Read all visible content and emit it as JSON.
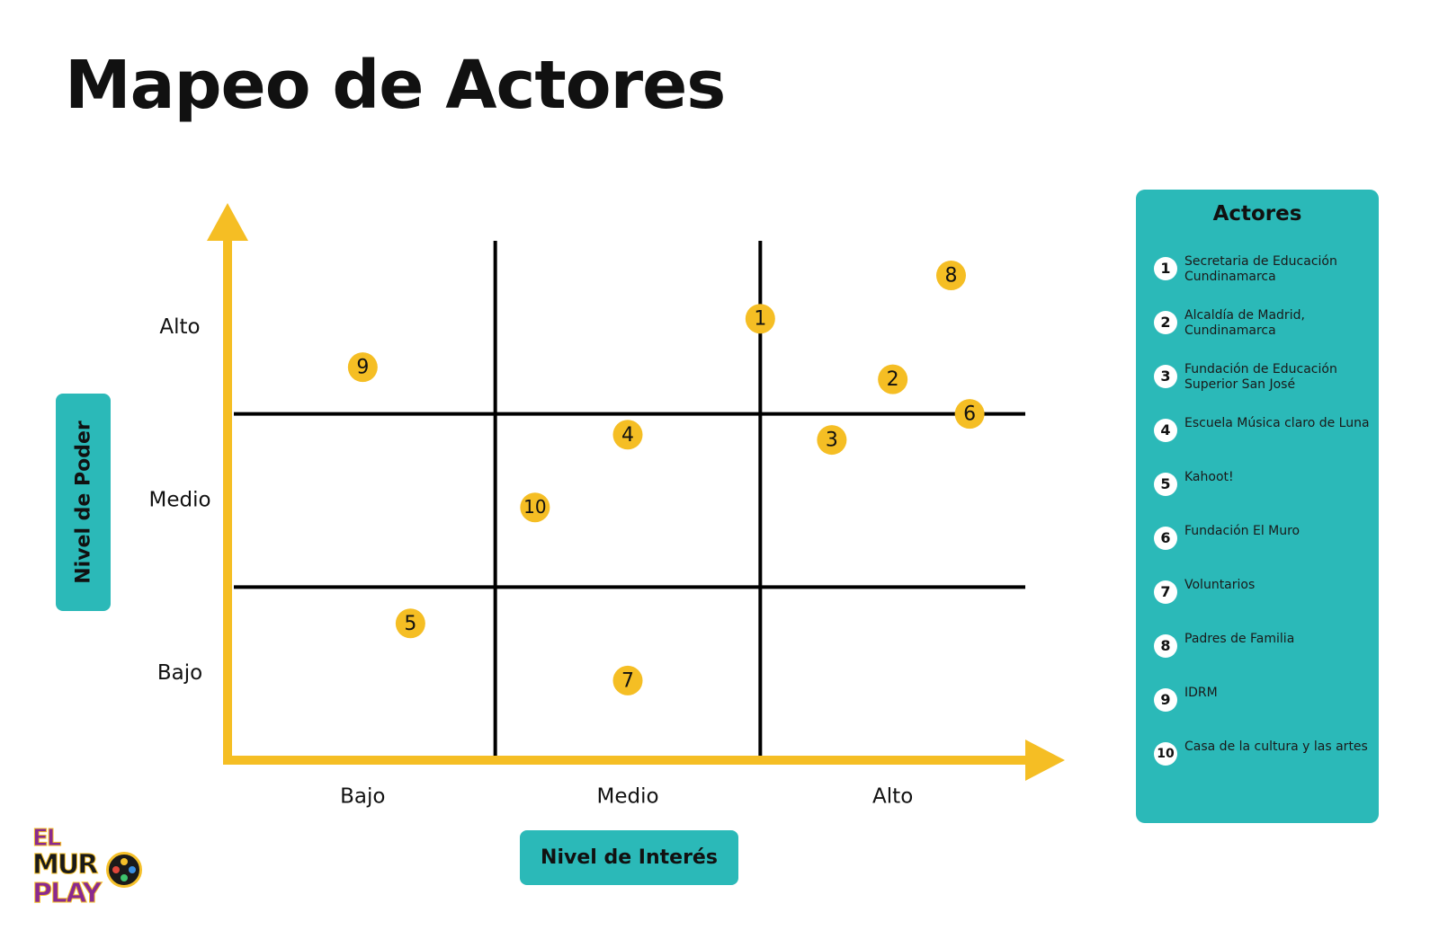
{
  "title": "Mapeo de Actores",
  "y_axis": {
    "label": "Nivel de Poder",
    "levels": [
      "Bajo",
      "Medio",
      "Alto"
    ]
  },
  "x_axis": {
    "label": "Nivel de Interés",
    "levels": [
      "Bajo",
      "Medio",
      "Alto"
    ]
  },
  "colors": {
    "accent": "#f5be24",
    "teal": "#2bb9b8",
    "grid": "#000000"
  },
  "legend": {
    "title": "Actores",
    "items": [
      {
        "num": "1",
        "name": "Secretaria de Educación Cundinamarca"
      },
      {
        "num": "2",
        "name": "Alcaldía de Madrid, Cundinamarca"
      },
      {
        "num": "3",
        "name": "Fundación de Educación Superior San José"
      },
      {
        "num": "4",
        "name": "Escuela Música claro de Luna"
      },
      {
        "num": "5",
        "name": "Kahoot!"
      },
      {
        "num": "6",
        "name": "Fundación El Muro"
      },
      {
        "num": "7",
        "name": "Voluntarios"
      },
      {
        "num": "8",
        "name": "Padres de Familia"
      },
      {
        "num": "9",
        "name": "IDRM"
      },
      {
        "num": "10",
        "name": "Casa de la cultura y las artes"
      }
    ]
  },
  "chart_data": {
    "type": "scatter",
    "x_range": [
      0,
      3
    ],
    "y_range": [
      0,
      3
    ],
    "points": [
      {
        "label": "1",
        "x": 2.0,
        "y": 2.55
      },
      {
        "label": "2",
        "x": 2.5,
        "y": 2.2
      },
      {
        "label": "3",
        "x": 2.27,
        "y": 1.85
      },
      {
        "label": "4",
        "x": 1.5,
        "y": 1.88
      },
      {
        "label": "5",
        "x": 0.68,
        "y": 0.79
      },
      {
        "label": "6",
        "x": 2.79,
        "y": 2.0
      },
      {
        "label": "7",
        "x": 1.5,
        "y": 0.46
      },
      {
        "label": "8",
        "x": 2.72,
        "y": 2.8
      },
      {
        "label": "9",
        "x": 0.5,
        "y": 2.27
      },
      {
        "label": "10",
        "x": 1.15,
        "y": 1.46
      }
    ]
  },
  "logo": {
    "lines": [
      "EL",
      "MUR",
      "PLAY"
    ]
  }
}
